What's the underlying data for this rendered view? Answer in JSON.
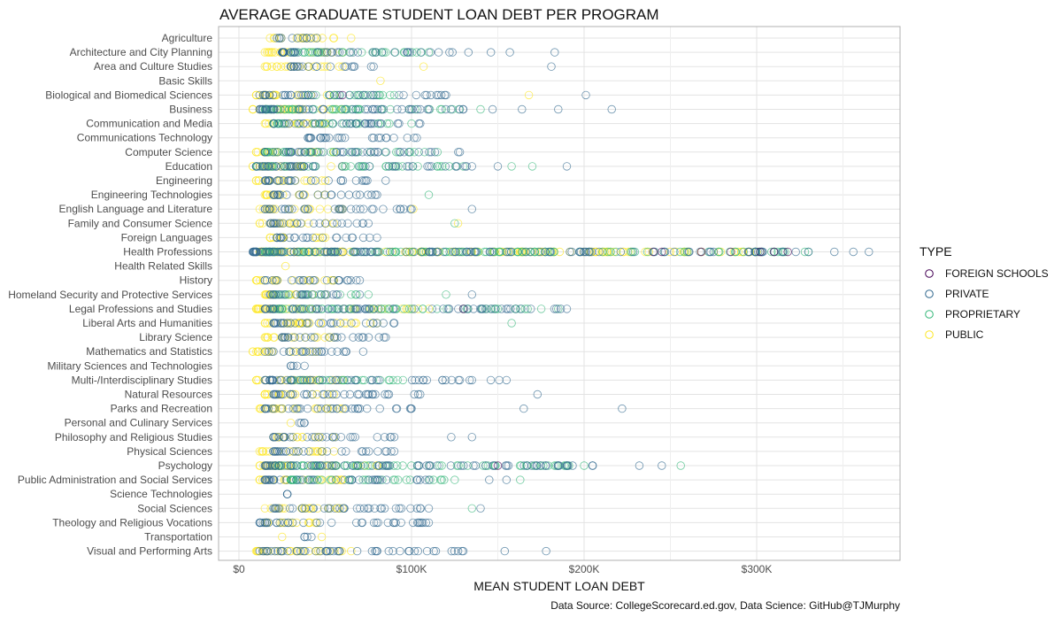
{
  "chart_data": {
    "type": "scatter",
    "title": "AVERAGE GRADUATE STUDENT LOAN DEBT PER PROGRAM",
    "xlabel": "MEAN STUDENT LOAN DEBT",
    "ylabel": "",
    "xlim": [
      0,
      380000
    ],
    "x_ticks": [
      0,
      100000,
      200000,
      300000
    ],
    "x_tick_labels": [
      "$0",
      "$100K",
      "$200K",
      "$300K"
    ],
    "grid": true,
    "legend": {
      "title": "TYPE",
      "position": "right"
    },
    "caption": "Data Source: CollegeScorecard.ed.gov, Data Science: GitHub@TJMurphy",
    "categories": [
      "Agriculture",
      "Architecture and City Planning",
      "Area and Culture Studies",
      "Basic Skills",
      "Biological and Biomedical Sciences",
      "Business",
      "Communication and Media",
      "Communications Technology",
      "Computer Science",
      "Education",
      "Engineering",
      "Engineering Technologies",
      "English Language and Literature",
      "Family and Consumer Science",
      "Foreign Languages",
      "Health Professions",
      "Health Related Skills",
      "History",
      "Homeland Security and Protective Services",
      "Legal Professions and Studies",
      "Liberal Arts and Humanities",
      "Library Science",
      "Mathematics and Statistics",
      "Military Sciences and Technologies",
      "Multi-/Interdisciplinary Studies",
      "Natural Resources",
      "Parks and Recreation",
      "Personal and Culinary Services",
      "Philosophy and Religious Studies",
      "Physical Sciences",
      "Psychology",
      "Public Administration and Social Services",
      "Science Technologies",
      "Social Sciences",
      "Theology and Religious Vocations",
      "Transportation",
      "Visual and Performing Arts"
    ],
    "series": [
      {
        "name": "FOREIGN SCHOOLS",
        "color": "#440154",
        "points": [
          [
            "Health Professions",
            240000
          ],
          [
            "Health Professions",
            245000
          ],
          [
            "Health Professions",
            268000
          ],
          [
            "Health Professions",
            285000
          ],
          [
            "Health Professions",
            302000
          ],
          [
            "Health Professions",
            310000
          ],
          [
            "Health Professions",
            318000
          ],
          [
            "Biological and Biomedical Sciences",
            60000
          ],
          [
            "Psychology",
            150000
          ],
          [
            "Legal Professions and Studies",
            130000
          ]
        ]
      },
      {
        "name": "PRIVATE",
        "color": "#31688E",
        "ranges": [
          [
            "Agriculture",
            22000,
            45000
          ],
          [
            "Architecture and City Planning",
            25000,
            133000
          ],
          [
            "Area and Culture Studies",
            30000,
            78000
          ],
          [
            "Biological and Biomedical Sciences",
            12000,
            120000
          ],
          [
            "Business",
            12000,
            130000
          ],
          [
            "Communication and Media",
            20000,
            105000
          ],
          [
            "Communications Technology",
            40000,
            103000
          ],
          [
            "Computer Science",
            15000,
            128000
          ],
          [
            "Education",
            10000,
            135000
          ],
          [
            "Engineering",
            15000,
            85000
          ],
          [
            "Engineering Technologies",
            20000,
            80000
          ],
          [
            "English Language and Literature",
            15000,
            100000
          ],
          [
            "Family and Consumer Science",
            18000,
            75000
          ],
          [
            "Foreign Languages",
            22000,
            80000
          ],
          [
            "Health Professions",
            8000,
            330000
          ],
          [
            "History",
            15000,
            70000
          ],
          [
            "Homeland Security and Protective Services",
            18000,
            70000
          ],
          [
            "Legal Professions and Studies",
            15000,
            190000
          ],
          [
            "Liberal Arts and Humanities",
            20000,
            90000
          ],
          [
            "Library Science",
            25000,
            85000
          ],
          [
            "Mathematics and Statistics",
            15000,
            72000
          ],
          [
            "Military Sciences and Technologies",
            30000,
            38000
          ],
          [
            "Multi-/Interdisciplinary Studies",
            15000,
            155000
          ],
          [
            "Natural Resources",
            20000,
            105000
          ],
          [
            "Parks and Recreation",
            15000,
            100000
          ],
          [
            "Personal and Culinary Services",
            35000,
            38000
          ],
          [
            "Philosophy and Religious Studies",
            20000,
            90000
          ],
          [
            "Physical Sciences",
            20000,
            90000
          ],
          [
            "Psychology",
            15000,
            205000
          ],
          [
            "Public Administration and Social Services",
            15000,
            110000
          ],
          [
            "Science Technologies",
            28000,
            28000
          ],
          [
            "Social Sciences",
            20000,
            110000
          ],
          [
            "Theology and Religious Vocations",
            12000,
            110000
          ],
          [
            "Transportation",
            38000,
            42000
          ],
          [
            "Visual and Performing Arts",
            12000,
            130000
          ]
        ],
        "points": [
          [
            "Architecture and City Planning",
            146000
          ],
          [
            "Architecture and City Planning",
            157000
          ],
          [
            "Architecture and City Planning",
            183000
          ],
          [
            "Area and Culture Studies",
            181000
          ],
          [
            "Biological and Biomedical Sciences",
            201000
          ],
          [
            "Business",
            147000
          ],
          [
            "Business",
            164000
          ],
          [
            "Business",
            185000
          ],
          [
            "Business",
            216000
          ],
          [
            "Education",
            150000
          ],
          [
            "Education",
            190000
          ],
          [
            "Health Professions",
            345000
          ],
          [
            "Health Professions",
            356000
          ],
          [
            "Health Professions",
            365000
          ],
          [
            "English Language and Literature",
            135000
          ],
          [
            "Natural Resources",
            173000
          ],
          [
            "Parks and Recreation",
            165000
          ],
          [
            "Parks and Recreation",
            222000
          ],
          [
            "Psychology",
            232000
          ],
          [
            "Psychology",
            245000
          ],
          [
            "Visual and Performing Arts",
            154000
          ],
          [
            "Visual and Performing Arts",
            178000
          ],
          [
            "Multi-/Interdisciplinary Studies",
            135000
          ],
          [
            "Philosophy and Religious Studies",
            123000
          ],
          [
            "Philosophy and Religious Studies",
            135000
          ],
          [
            "Social Sciences",
            140000
          ],
          [
            "Homeland Security and Protective Services",
            135000
          ],
          [
            "Public Administration and Social Services",
            145000
          ],
          [
            "Public Administration and Social Services",
            155000
          ]
        ]
      },
      {
        "name": "PROPRIETARY",
        "color": "#35B779",
        "ranges": [
          [
            "Architecture and City Planning",
            30000,
            110000
          ],
          [
            "Biological and Biomedical Sciences",
            40000,
            90000
          ],
          [
            "Business",
            15000,
            140000
          ],
          [
            "Communication and Media",
            20000,
            100000
          ],
          [
            "Computer Science",
            15000,
            115000
          ],
          [
            "Education",
            10000,
            130000
          ],
          [
            "Health Professions",
            15000,
            330000
          ],
          [
            "Legal Professions and Studies",
            20000,
            185000
          ],
          [
            "Psychology",
            20000,
            200000
          ],
          [
            "Public Administration and Social Services",
            30000,
            125000
          ],
          [
            "Homeland Security and Protective Services",
            20000,
            75000
          ],
          [
            "Multi-/Interdisciplinary Studies",
            30000,
            95000
          ]
        ],
        "points": [
          [
            "Education",
            158000
          ],
          [
            "Education",
            170000
          ],
          [
            "Family and Consumer Science",
            125000
          ],
          [
            "Liberal Arts and Humanities",
            158000
          ],
          [
            "Psychology",
            185000
          ],
          [
            "Psychology",
            256000
          ],
          [
            "Engineering Technologies",
            110000
          ],
          [
            "Homeland Security and Protective Services",
            120000
          ],
          [
            "Public Administration and Social Services",
            163000
          ],
          [
            "Social Sciences",
            135000
          ]
        ]
      },
      {
        "name": "PUBLIC",
        "color": "#FDE725",
        "ranges": [
          [
            "Agriculture",
            18000,
            55000
          ],
          [
            "Architecture and City Planning",
            15000,
            60000
          ],
          [
            "Area and Culture Studies",
            15000,
            60000
          ],
          [
            "Biological and Biomedical Sciences",
            10000,
            55000
          ],
          [
            "Business",
            8000,
            60000
          ],
          [
            "Communication and Media",
            15000,
            50000
          ],
          [
            "Computer Science",
            10000,
            55000
          ],
          [
            "Education",
            8000,
            60000
          ],
          [
            "Engineering",
            10000,
            50000
          ],
          [
            "Engineering Technologies",
            15000,
            50000
          ],
          [
            "English Language and Literature",
            12000,
            60000
          ],
          [
            "Family and Consumer Science",
            12000,
            55000
          ],
          [
            "Foreign Languages",
            18000,
            50000
          ],
          [
            "Health Professions",
            12000,
            300000
          ],
          [
            "History",
            10000,
            55000
          ],
          [
            "Homeland Security and Protective Services",
            15000,
            50000
          ],
          [
            "Legal Professions and Studies",
            10000,
            110000
          ],
          [
            "Liberal Arts and Humanities",
            15000,
            80000
          ],
          [
            "Library Science",
            15000,
            55000
          ],
          [
            "Mathematics and Statistics",
            8000,
            45000
          ],
          [
            "Multi-/Interdisciplinary Studies",
            10000,
            60000
          ],
          [
            "Natural Resources",
            15000,
            55000
          ],
          [
            "Parks and Recreation",
            12000,
            60000
          ],
          [
            "Philosophy and Religious Studies",
            20000,
            55000
          ],
          [
            "Physical Sciences",
            12000,
            55000
          ],
          [
            "Psychology",
            12000,
            80000
          ],
          [
            "Public Administration and Social Services",
            12000,
            60000
          ],
          [
            "Social Sciences",
            15000,
            60000
          ],
          [
            "Theology and Religious Vocations",
            15000,
            45000
          ],
          [
            "Visual and Performing Arts",
            10000,
            65000
          ]
        ],
        "points": [
          [
            "Agriculture",
            65000
          ],
          [
            "Area and Culture Studies",
            107000
          ],
          [
            "Basic Skills",
            82000
          ],
          [
            "Biological and Biomedical Sciences",
            168000
          ],
          [
            "Health Related Skills",
            27000
          ],
          [
            "Personal and Culinary Services",
            30000
          ],
          [
            "Transportation",
            25000
          ],
          [
            "Transportation",
            48000
          ],
          [
            "Family and Consumer Science",
            127000
          ],
          [
            "English Language and Literature",
            101000
          ]
        ]
      }
    ]
  }
}
